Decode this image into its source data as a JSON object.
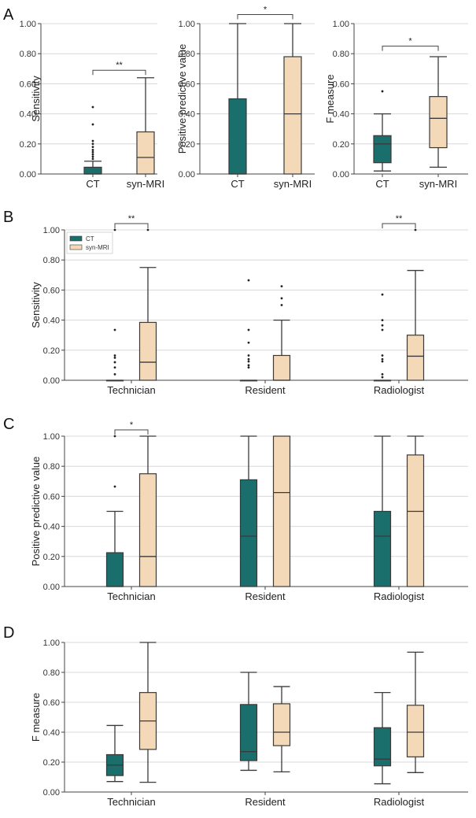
{
  "colors": {
    "CT": "#1a6e6b",
    "syn-MRI": "#f4d9b8",
    "edge": "#3a3a3a",
    "grid": "#d8d8d8"
  },
  "chart_data": [
    {
      "panel": "A",
      "subplot": 1,
      "type": "box",
      "ylabel": "Sensitivity",
      "ylim": [
        0,
        1
      ],
      "yticks": [
        "0.00",
        "0.20",
        "0.40",
        "0.60",
        "0.80",
        "1.00"
      ],
      "categories": [
        "CT",
        "syn-MRI"
      ],
      "series": [
        {
          "name": "CT",
          "q1": 0.0,
          "median": 0.0,
          "q3": 0.045,
          "whislo": 0.0,
          "whishi": 0.085,
          "fliers": [
            0.1,
            0.115,
            0.13,
            0.145,
            0.16,
            0.18,
            0.2,
            0.22,
            0.33,
            0.445
          ]
        },
        {
          "name": "syn-MRI",
          "q1": 0.0,
          "median": 0.11,
          "q3": 0.28,
          "whislo": 0.0,
          "whishi": 0.64,
          "fliers": []
        }
      ],
      "significance": [
        {
          "between": [
            "CT",
            "syn-MRI"
          ],
          "label": "**",
          "y": 0.69
        }
      ]
    },
    {
      "panel": "A",
      "subplot": 2,
      "type": "box",
      "ylabel": "Positive predictive value",
      "ylim": [
        0,
        1
      ],
      "yticks": [
        "0.00",
        "0.20",
        "0.40",
        "0.60",
        "0.80",
        "1.00"
      ],
      "categories": [
        "CT",
        "syn-MRI"
      ],
      "series": [
        {
          "name": "CT",
          "q1": 0.0,
          "median": 0.0,
          "q3": 0.5,
          "whislo": 0.0,
          "whishi": 1.0,
          "fliers": []
        },
        {
          "name": "syn-MRI",
          "q1": 0.0,
          "median": 0.4,
          "q3": 0.78,
          "whislo": 0.0,
          "whishi": 1.0,
          "fliers": []
        }
      ],
      "significance": [
        {
          "between": [
            "CT",
            "syn-MRI"
          ],
          "label": "*",
          "y": 1.06
        }
      ]
    },
    {
      "panel": "A",
      "subplot": 3,
      "type": "box",
      "ylabel": "F measure",
      "ylim": [
        0,
        1
      ],
      "yticks": [
        "0.00",
        "0.20",
        "0.40",
        "0.60",
        "0.80",
        "1.00"
      ],
      "categories": [
        "CT",
        "syn-MRI"
      ],
      "series": [
        {
          "name": "CT",
          "q1": 0.075,
          "median": 0.2,
          "q3": 0.255,
          "whislo": 0.02,
          "whishi": 0.4,
          "fliers": [
            0.55
          ]
        },
        {
          "name": "syn-MRI",
          "q1": 0.175,
          "median": 0.37,
          "q3": 0.515,
          "whislo": 0.045,
          "whishi": 0.78,
          "fliers": []
        }
      ],
      "significance": [
        {
          "between": [
            "CT",
            "syn-MRI"
          ],
          "label": "*",
          "y": 0.85
        }
      ]
    },
    {
      "panel": "B",
      "type": "box",
      "ylabel": "Sensitivity",
      "ylim": [
        0,
        1
      ],
      "yticks": [
        "0.00",
        "0.20",
        "0.40",
        "0.60",
        "0.80",
        "1.00"
      ],
      "categories": [
        "Technician",
        "Resident",
        "Radiologist"
      ],
      "legend": {
        "entries": [
          "CT",
          "syn-MRI"
        ],
        "position": "top-left"
      },
      "series": [
        {
          "name": "CT",
          "boxes": [
            {
              "q1": 0,
              "median": 0,
              "q3": 0,
              "whislo": 0,
              "whishi": 0,
              "fliers": [
                0.04,
                0.085,
                0.12,
                0.15,
                0.165,
                0.335,
                1.0
              ]
            },
            {
              "q1": 0,
              "median": 0,
              "q3": 0,
              "whislo": 0,
              "whishi": 0,
              "fliers": [
                0.085,
                0.1,
                0.125,
                0.14,
                0.165,
                0.25,
                0.335,
                0.665
              ]
            },
            {
              "q1": 0,
              "median": 0,
              "q3": 0,
              "whislo": 0,
              "whishi": 0,
              "fliers": [
                0.02,
                0.04,
                0.125,
                0.14,
                0.165,
                0.335,
                0.365,
                0.4,
                0.57
              ]
            }
          ]
        },
        {
          "name": "syn-MRI",
          "boxes": [
            {
              "q1": 0,
              "median": 0.12,
              "q3": 0.385,
              "whislo": 0,
              "whishi": 0.75,
              "fliers": [
                1.0
              ]
            },
            {
              "q1": 0,
              "median": 0,
              "q3": 0.165,
              "whislo": 0,
              "whishi": 0.4,
              "fliers": [
                0.5,
                0.545,
                0.625
              ]
            },
            {
              "q1": 0,
              "median": 0.16,
              "q3": 0.3,
              "whislo": 0,
              "whishi": 0.73,
              "fliers": [
                1.0
              ]
            }
          ]
        }
      ],
      "significance": [
        {
          "category": "Technician",
          "label": "**"
        },
        {
          "category": "Radiologist",
          "label": "**"
        }
      ]
    },
    {
      "panel": "C",
      "type": "box",
      "ylabel": "Positive predictive value",
      "ylim": [
        0,
        1
      ],
      "yticks": [
        "0.00",
        "0.20",
        "0.40",
        "0.60",
        "0.80",
        "1.00"
      ],
      "categories": [
        "Technician",
        "Resident",
        "Radiologist"
      ],
      "series": [
        {
          "name": "CT",
          "boxes": [
            {
              "q1": 0,
              "median": 0,
              "q3": 0.225,
              "whislo": 0,
              "whishi": 0.5,
              "fliers": [
                0.665,
                1.0
              ]
            },
            {
              "q1": 0,
              "median": 0.335,
              "q3": 0.71,
              "whislo": 0,
              "whishi": 1.0,
              "fliers": []
            },
            {
              "q1": 0,
              "median": 0.335,
              "q3": 0.5,
              "whislo": 0,
              "whishi": 1.0,
              "fliers": []
            }
          ]
        },
        {
          "name": "syn-MRI",
          "boxes": [
            {
              "q1": 0,
              "median": 0.2,
              "q3": 0.75,
              "whislo": 0,
              "whishi": 1.0,
              "fliers": []
            },
            {
              "q1": 0,
              "median": 0.625,
              "q3": 1.0,
              "whislo": 0,
              "whishi": 1.0,
              "fliers": []
            },
            {
              "q1": 0,
              "median": 0.5,
              "q3": 0.875,
              "whislo": 0,
              "whishi": 1.0,
              "fliers": []
            }
          ]
        }
      ],
      "significance": [
        {
          "category": "Technician",
          "label": "*"
        }
      ]
    },
    {
      "panel": "D",
      "type": "box",
      "ylabel": "F measure",
      "ylim": [
        0,
        1
      ],
      "yticks": [
        "0.00",
        "0.20",
        "0.40",
        "0.60",
        "0.80",
        "1.00"
      ],
      "categories": [
        "Technician",
        "Resident",
        "Radiologist"
      ],
      "series": [
        {
          "name": "CT",
          "boxes": [
            {
              "q1": 0.11,
              "median": 0.18,
              "q3": 0.25,
              "whislo": 0.07,
              "whishi": 0.445,
              "fliers": []
            },
            {
              "q1": 0.21,
              "median": 0.27,
              "q3": 0.585,
              "whislo": 0.145,
              "whishi": 0.8,
              "fliers": []
            },
            {
              "q1": 0.175,
              "median": 0.22,
              "q3": 0.43,
              "whislo": 0.055,
              "whishi": 0.665,
              "fliers": []
            }
          ]
        },
        {
          "name": "syn-MRI",
          "boxes": [
            {
              "q1": 0.285,
              "median": 0.475,
              "q3": 0.665,
              "whislo": 0.065,
              "whishi": 1.0,
              "fliers": []
            },
            {
              "q1": 0.31,
              "median": 0.4,
              "q3": 0.59,
              "whislo": 0.135,
              "whishi": 0.705,
              "fliers": []
            },
            {
              "q1": 0.235,
              "median": 0.4,
              "q3": 0.58,
              "whislo": 0.13,
              "whishi": 0.935,
              "fliers": []
            }
          ]
        }
      ],
      "significance": []
    }
  ]
}
